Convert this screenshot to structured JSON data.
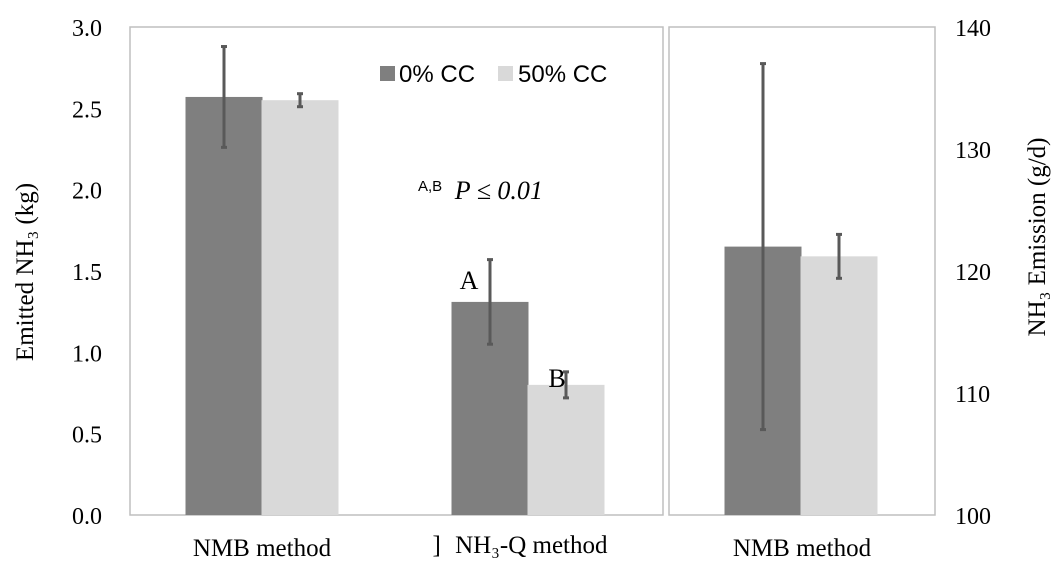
{
  "chart_data": [
    {
      "type": "bar",
      "categories": [
        "NMB method",
        "NH₃-Q method"
      ],
      "series": [
        {
          "name": "0% CC",
          "values": [
            2.57,
            1.31
          ],
          "error": [
            0.31,
            0.26
          ]
        },
        {
          "name": "50% CC",
          "values": [
            2.55,
            0.8
          ],
          "error": [
            0.04,
            0.08
          ]
        }
      ],
      "ylabel": "Emitted NH₃ (kg)",
      "ylim": [
        0,
        3.0
      ],
      "yticks": [
        "0.0",
        "0.5",
        "1.0",
        "1.5",
        "2.0",
        "2.5",
        "3.0"
      ],
      "bar_labels": {
        "nh3q_0cc": "A",
        "nh3q_50cc": "B"
      },
      "annotation": {
        "superscript": "A,B",
        "text": "P ≤ 0.01"
      },
      "category_prefix": "]",
      "legend": "top-right",
      "colors": {
        "0% CC": "#7f7f7f",
        "50% CC": "#d9d9d9"
      }
    },
    {
      "type": "bar",
      "categories": [
        "NMB method"
      ],
      "series": [
        {
          "name": "0% CC",
          "values": [
            122.0
          ],
          "error": [
            15.0
          ]
        },
        {
          "name": "50% CC",
          "values": [
            121.2
          ],
          "error": [
            1.8
          ]
        }
      ],
      "ylabel": "NH₃ Emission (g/d)",
      "ylim": [
        100,
        140
      ],
      "yticks": [
        "100",
        "110",
        "120",
        "130",
        "140"
      ],
      "colors": {
        "0% CC": "#7f7f7f",
        "50% CC": "#d9d9d9"
      }
    }
  ]
}
